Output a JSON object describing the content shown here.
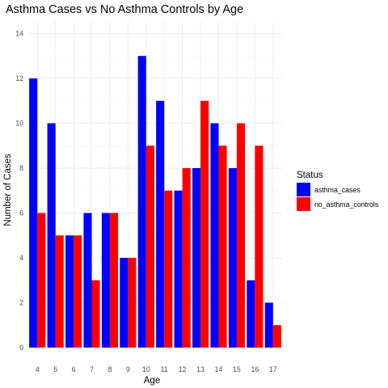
{
  "chart_data": {
    "type": "bar",
    "title": "Asthma Cases vs No Asthma Controls by Age",
    "xlabel": "Age",
    "ylabel": "Number of Cases",
    "categories": [
      "4",
      "5",
      "6",
      "7",
      "8",
      "9",
      "10",
      "11",
      "12",
      "13",
      "14",
      "15",
      "16",
      "17"
    ],
    "series": [
      {
        "name": "asthma_cases",
        "color": "#0000ff",
        "values": [
          12,
          10,
          5,
          6,
          6,
          4,
          13,
          11,
          7,
          8,
          10,
          8,
          3,
          2
        ]
      },
      {
        "name": "no_asthma_controls",
        "color": "#ff0000",
        "values": [
          6,
          5,
          5,
          3,
          6,
          4,
          9,
          7,
          8,
          11,
          9,
          10,
          9,
          1
        ]
      }
    ],
    "ylim": [
      0,
      14
    ],
    "y_ticks": [
      0,
      2,
      4,
      6,
      8,
      10,
      12,
      14
    ],
    "grid": true,
    "legend": {
      "title": "Status",
      "position": "right"
    }
  }
}
